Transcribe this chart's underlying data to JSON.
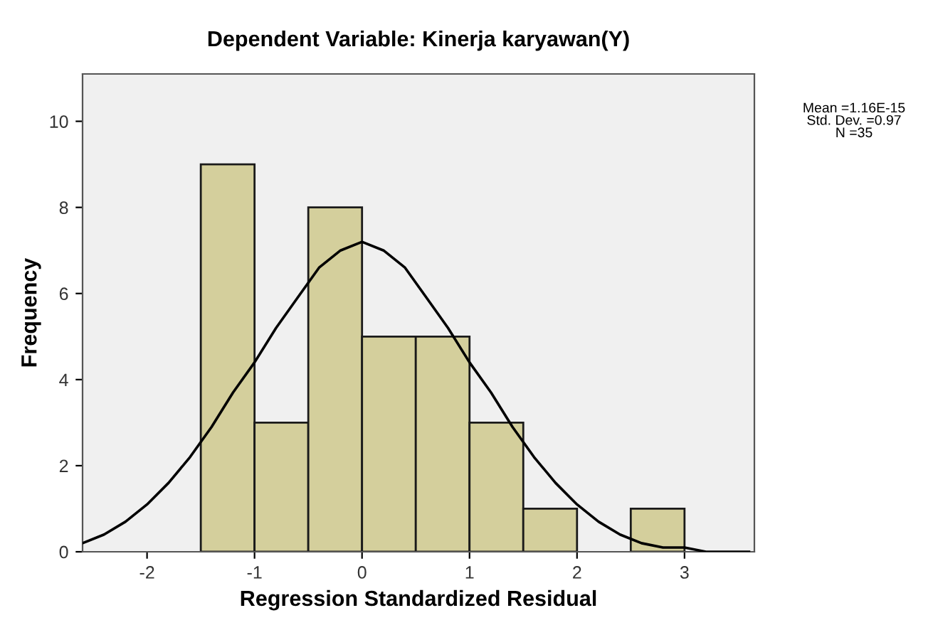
{
  "chart_data": {
    "type": "histogram",
    "title": "Dependent Variable: Kinerja karyawan(Y)",
    "xlabel": "Regression Standardized Residual",
    "ylabel": "Frequency",
    "bins": [
      -1.5,
      -1.0,
      -0.5,
      0.0,
      0.5,
      1.0,
      1.5,
      2.0,
      2.5,
      3.0
    ],
    "values": [
      9,
      3,
      8,
      5,
      5,
      3,
      1,
      0,
      1
    ],
    "color": "#d4cf9c",
    "series": [
      {
        "type": "line",
        "color": "#000000",
        "x": [
          -2.6,
          -2.4,
          -2.2,
          -2.0,
          -1.8,
          -1.6,
          -1.4,
          -1.2,
          -1.0,
          -0.8,
          -0.6,
          -0.4,
          -0.2,
          0.0,
          0.2,
          0.4,
          0.6,
          0.8,
          1.0,
          1.2,
          1.4,
          1.6,
          1.8,
          2.0,
          2.2,
          2.4,
          2.6,
          2.8,
          3.0,
          3.2,
          3.6
        ],
        "values": [
          0.2,
          0.4,
          0.7,
          1.1,
          1.6,
          2.2,
          2.9,
          3.7,
          4.4,
          5.2,
          5.9,
          6.6,
          7.0,
          7.2,
          7.0,
          6.6,
          5.9,
          5.2,
          4.4,
          3.7,
          2.9,
          2.2,
          1.6,
          1.1,
          0.7,
          0.4,
          0.2,
          0.1,
          0.1,
          0.0,
          0.0
        ]
      }
    ],
    "annotations": [
      "Mean =1.16E-15\nStd. Dev. =0.97\nN =35"
    ],
    "xlim": [
      -2.6,
      3.65
    ],
    "ylim": [
      0,
      11.1
    ],
    "xticks": [
      -2,
      -1,
      0,
      1,
      2,
      3
    ],
    "yticks": [
      0,
      2,
      4,
      6,
      8,
      10
    ],
    "grid": false,
    "legend": false,
    "marker": "none",
    "line_style": "solid"
  }
}
